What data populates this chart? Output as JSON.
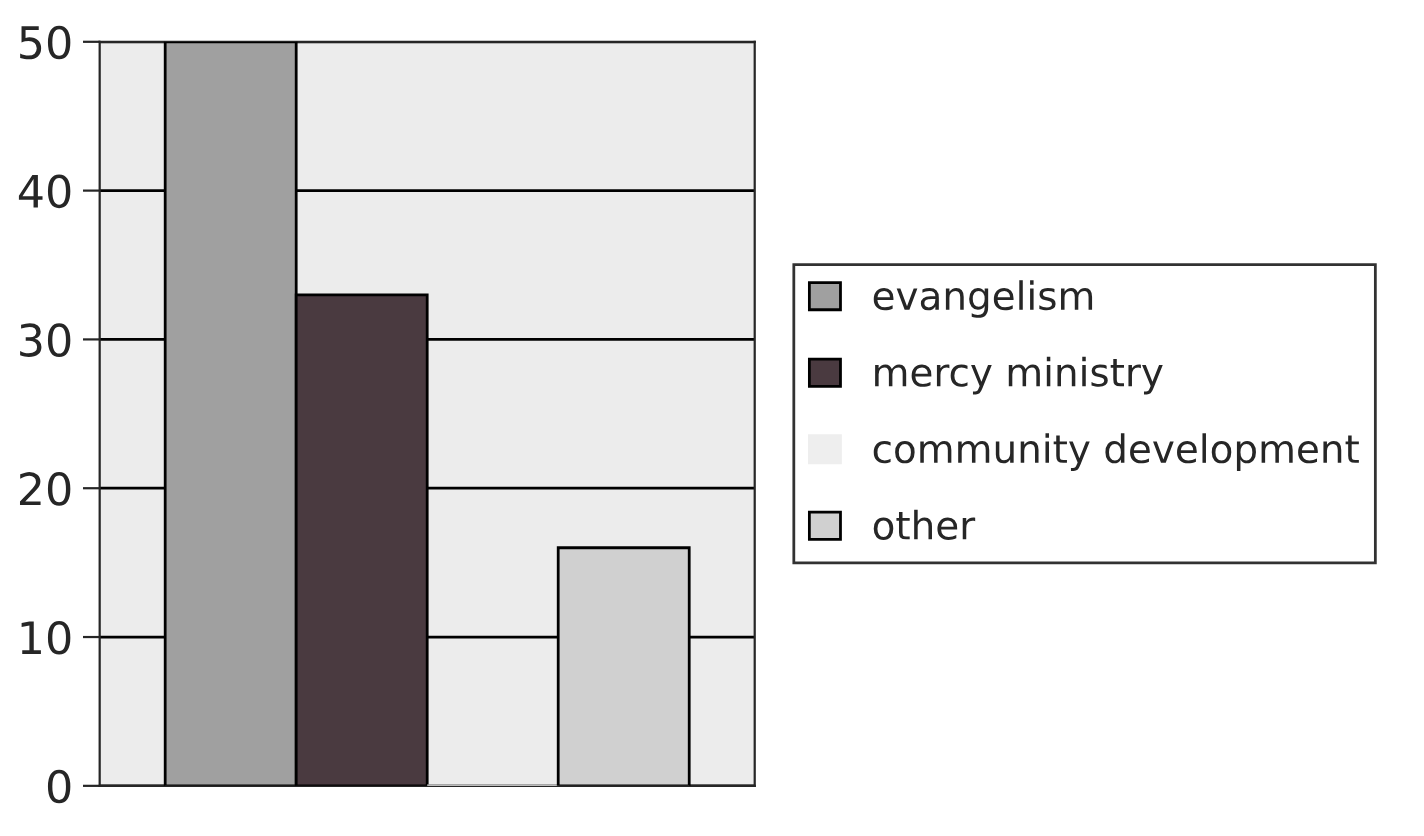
{
  "chart_data": {
    "type": "bar",
    "categories": [
      null
    ],
    "series": [
      {
        "name": "evangelism",
        "color": "#a0a0a0",
        "values": [
          50
        ]
      },
      {
        "name": "mercy ministry",
        "color": "#4a3a40",
        "values": [
          33
        ]
      },
      {
        "name": "community development",
        "color": "#eeeeee",
        "values": [
          0
        ]
      },
      {
        "name": "other",
        "color": "#d0d0d0",
        "values": [
          16
        ]
      }
    ],
    "ylim": [
      0,
      50
    ],
    "yticks": [
      0,
      10,
      20,
      30,
      40,
      50
    ],
    "grid": "y",
    "legend": "right"
  }
}
